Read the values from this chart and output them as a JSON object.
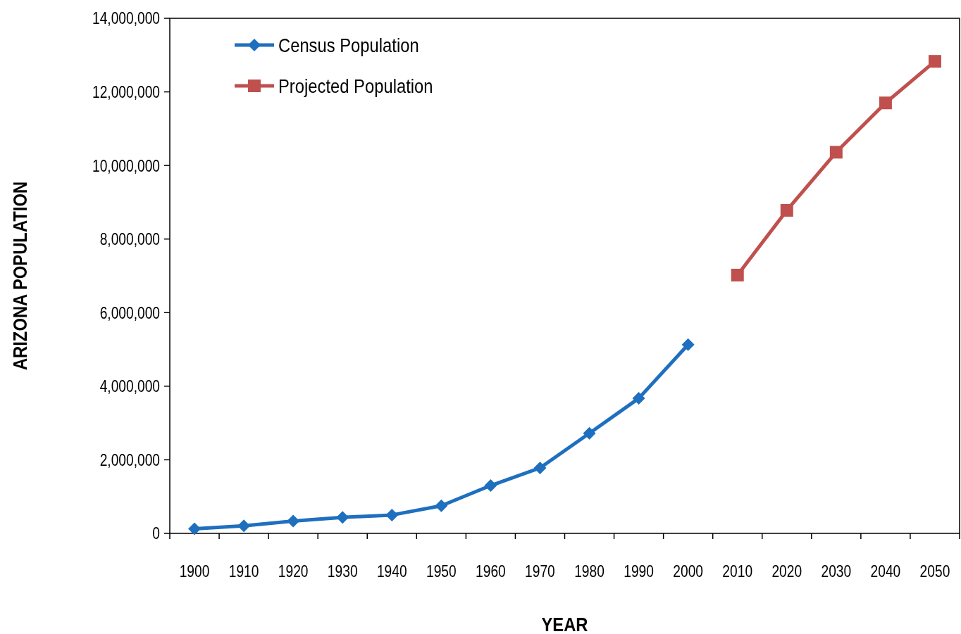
{
  "chart_data": {
    "type": "line",
    "xlabel": "YEAR",
    "ylabel": "ARIZONA POPULATION",
    "categories": [
      "1900",
      "1910",
      "1920",
      "1930",
      "1940",
      "1950",
      "1960",
      "1970",
      "1980",
      "1990",
      "2000",
      "2010",
      "2020",
      "2030",
      "2040",
      "2050"
    ],
    "series": [
      {
        "name": "Census Population",
        "color": "#1f6fbf",
        "marker": "diamond",
        "values": [
          123000,
          204000,
          334000,
          436000,
          499000,
          750000,
          1300000,
          1780000,
          2720000,
          3670000,
          5130000,
          null,
          null,
          null,
          null,
          null
        ]
      },
      {
        "name": "Projected Population",
        "color": "#c0504d",
        "marker": "square",
        "values": [
          null,
          null,
          null,
          null,
          null,
          null,
          null,
          null,
          null,
          null,
          null,
          7020000,
          8780000,
          10360000,
          11700000,
          12830000
        ]
      }
    ],
    "ylim": [
      0,
      14000000
    ],
    "yticks": [
      {
        "value": 0,
        "label": "0"
      },
      {
        "value": 2000000,
        "label": "2,000,000"
      },
      {
        "value": 4000000,
        "label": "4,000,000"
      },
      {
        "value": 6000000,
        "label": "6,000,000"
      },
      {
        "value": 8000000,
        "label": "8,000,000"
      },
      {
        "value": 10000000,
        "label": "10,000,000"
      },
      {
        "value": 12000000,
        "label": "12,000,000"
      },
      {
        "value": 14000000,
        "label": "14,000,000"
      }
    ],
    "grid": false,
    "legend": "top left"
  }
}
